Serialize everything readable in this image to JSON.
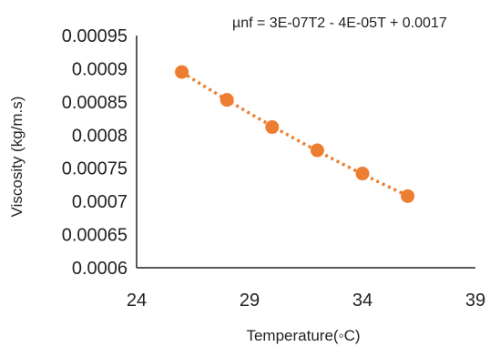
{
  "chart_data": {
    "type": "scatter",
    "title": "",
    "xlabel": "Temperature(◦C)",
    "ylabel": "Viscosity (kg/m.s)",
    "xlim": [
      24,
      39
    ],
    "ylim": [
      0.0006,
      0.00095
    ],
    "x_ticks": [
      "24",
      "29",
      "34",
      "39"
    ],
    "y_ticks": [
      "0.0006",
      "0.00065",
      "0.0007",
      "0.00075",
      "0.0008",
      "0.00085",
      "0.0009",
      "0.00095"
    ],
    "series": [
      {
        "x": [
          26,
          28,
          30,
          32,
          34,
          36
        ],
        "y": [
          0.000895,
          0.000853,
          0.000812,
          0.000777,
          0.000742,
          0.000708
        ],
        "color": "#ED7D31",
        "trendline": {
          "type": "polynomial",
          "style": "dotted",
          "color": "#ED7D31",
          "equation": "µnf = 3E-07T2 - 4E-05T + 0.0017"
        }
      }
    ],
    "grid": false,
    "legend": "none"
  }
}
